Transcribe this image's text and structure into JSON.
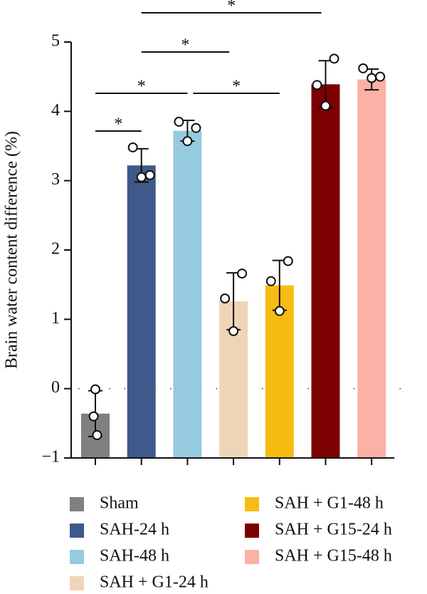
{
  "chart_data": {
    "type": "bar",
    "ylabel": "Brain water content difference (%)",
    "categories": [
      "Sham",
      "SAH-24 h",
      "SAH-48 h",
      "SAH + G1-24 h",
      "SAH + G1-48 h",
      "SAH + G15-24 h",
      "SAH + G15-48 h"
    ],
    "colors": [
      "#808080",
      "#3f5a8a",
      "#96cadf",
      "#efd5b8",
      "#f7bc14",
      "#7d0000",
      "#fbb1a5"
    ],
    "values": [
      -0.36,
      3.22,
      3.72,
      1.26,
      1.49,
      4.39,
      4.46
    ],
    "errors": [
      0.33,
      0.24,
      0.15,
      0.41,
      0.36,
      0.34,
      0.15
    ],
    "points": [
      [
        -0.01,
        -0.4,
        -0.67
      ],
      [
        3.05,
        3.48,
        3.08
      ],
      [
        3.57,
        3.85,
        3.76
      ],
      [
        0.83,
        1.3,
        1.66
      ],
      [
        1.12,
        1.55,
        1.84
      ],
      [
        4.08,
        4.38,
        4.76
      ],
      [
        4.48,
        4.62,
        4.5
      ]
    ],
    "ylim": [
      -1,
      5
    ],
    "yticks": [
      {
        "value": -1,
        "label": "−1"
      },
      0,
      1,
      2,
      3,
      4,
      5
    ],
    "significance": [
      {
        "from": 0,
        "to": 1,
        "label": "*"
      },
      {
        "from": 0,
        "to": 2,
        "label": "*"
      },
      {
        "from": 2,
        "to": 4,
        "label": "*"
      },
      {
        "from": 1,
        "to": 3,
        "label": "*"
      },
      {
        "from": 1,
        "to": 5,
        "label": "*"
      }
    ]
  }
}
